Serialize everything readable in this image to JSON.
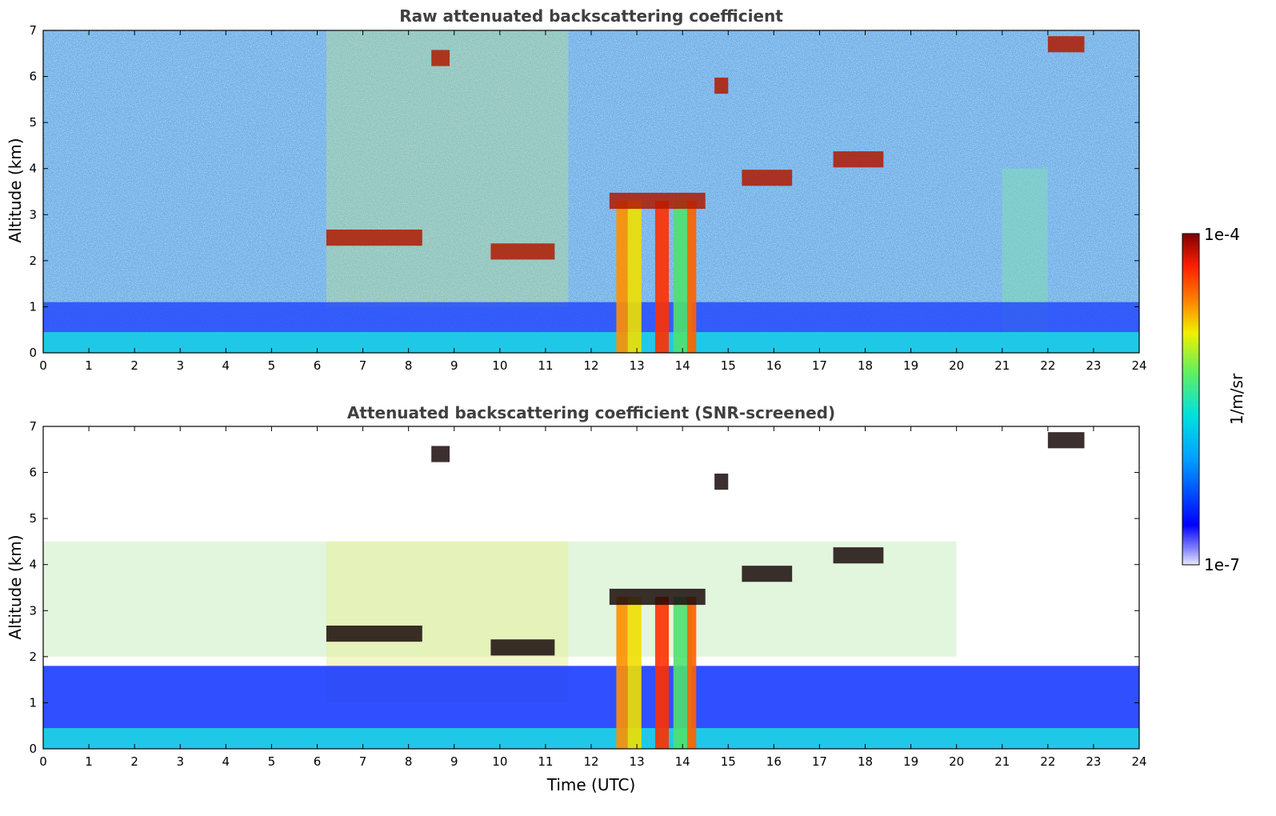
{
  "chart_data": [
    {
      "type": "heatmap",
      "title": "Raw attenuated backscattering coefficient",
      "xlabel": "",
      "ylabel": "Altitude (km)",
      "xlim": [
        0,
        24
      ],
      "ylim": [
        0,
        7
      ],
      "xticks": [
        "0",
        "1",
        "2",
        "3",
        "4",
        "5",
        "6",
        "7",
        "8",
        "9",
        "10",
        "11",
        "12",
        "13",
        "14",
        "15",
        "16",
        "17",
        "18",
        "19",
        "20",
        "21",
        "22",
        "23",
        "24"
      ],
      "yticks": [
        "0",
        "1",
        "2",
        "3",
        "4",
        "5",
        "6",
        "7"
      ],
      "screened": false,
      "layers": [
        {
          "t0": 6.2,
          "t1": 8.3,
          "z": 2.5
        },
        {
          "t0": 9.8,
          "t1": 11.2,
          "z": 2.2
        },
        {
          "t0": 12.4,
          "t1": 14.5,
          "z": 3.3
        },
        {
          "t0": 14.7,
          "t1": 15.0,
          "z": 5.8
        },
        {
          "t0": 15.3,
          "t1": 16.4,
          "z": 3.8
        },
        {
          "t0": 17.3,
          "t1": 18.4,
          "z": 4.2
        },
        {
          "t0": 8.5,
          "t1": 8.9,
          "z": 6.4
        },
        {
          "t0": 22.0,
          "t1": 22.8,
          "z": 6.7
        }
      ]
    },
    {
      "type": "heatmap",
      "title": "Attenuated backscattering coefficient (SNR-screened)",
      "xlabel": "Time (UTC)",
      "ylabel": "Altitude (km)",
      "xlim": [
        0,
        24
      ],
      "ylim": [
        0,
        7
      ],
      "xticks": [
        "0",
        "1",
        "2",
        "3",
        "4",
        "5",
        "6",
        "7",
        "8",
        "9",
        "10",
        "11",
        "12",
        "13",
        "14",
        "15",
        "16",
        "17",
        "18",
        "19",
        "20",
        "21",
        "22",
        "23",
        "24"
      ],
      "yticks": [
        "0",
        "1",
        "2",
        "3",
        "4",
        "5",
        "6",
        "7"
      ],
      "screened": true
    }
  ],
  "colorbar": {
    "label": "1/m/sr",
    "max_label": "1e-4",
    "min_label": "1e-7",
    "scale": "log",
    "colormap": [
      "#e8e8ff",
      "#0000ff",
      "#00a0ff",
      "#00e0e0",
      "#60f060",
      "#f0f000",
      "#ff8000",
      "#ff2000",
      "#800000"
    ]
  }
}
